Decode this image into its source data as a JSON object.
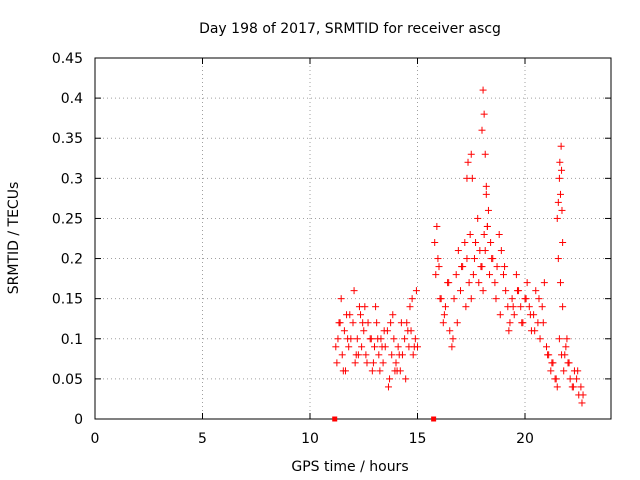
{
  "chart_data": {
    "type": "scatter",
    "title": "Day 198 of 2017, SRMTID for receiver ascg",
    "xlabel": "GPS time / hours",
    "ylabel": "SRMTID / TECUs",
    "xlim": [
      0,
      24
    ],
    "ylim": [
      0,
      0.45
    ],
    "xticks": [
      0,
      5,
      10,
      15,
      20
    ],
    "yticks": [
      0,
      0.05,
      0.1,
      0.15,
      0.2,
      0.25,
      0.3,
      0.35,
      0.4,
      0.45
    ],
    "ytick_labels": [
      "0",
      "0.05",
      "0.1",
      "0.15",
      "0.2",
      "0.25",
      "0.3",
      "0.35",
      "0.4",
      "0.45"
    ],
    "grid": true,
    "marker_color": "#ff0000",
    "zero_markers": [
      [
        11.15,
        0
      ],
      [
        15.75,
        0
      ]
    ],
    "series": [
      {
        "name": "SRMTID",
        "x": [
          11.2,
          11.3,
          11.4,
          11.5,
          11.6,
          11.7,
          11.8,
          11.9,
          12.0,
          12.1,
          12.2,
          12.3,
          12.4,
          12.5,
          12.6,
          12.7,
          12.8,
          12.9,
          13.0,
          13.1,
          13.2,
          13.3,
          13.4,
          13.5,
          13.6,
          13.7,
          13.8,
          13.9,
          14.0,
          14.1,
          14.2,
          14.3,
          14.4,
          14.5,
          14.6,
          14.7,
          14.8,
          14.9,
          15.0,
          11.25,
          11.45,
          11.65,
          11.85,
          12.05,
          12.25,
          12.45,
          12.65,
          12.85,
          13.05,
          13.25,
          13.45,
          13.65,
          13.85,
          14.05,
          14.25,
          14.45,
          14.65,
          14.85,
          11.35,
          11.75,
          12.15,
          12.55,
          12.95,
          13.35,
          13.75,
          14.15,
          14.55,
          14.95,
          11.55,
          12.35,
          13.15,
          13.95,
          14.75,
          15.8,
          15.9,
          16.0,
          16.1,
          16.2,
          16.3,
          16.4,
          16.5,
          16.6,
          16.7,
          16.8,
          16.9,
          17.0,
          17.1,
          17.2,
          17.3,
          17.4,
          17.5,
          17.6,
          17.7,
          17.8,
          17.9,
          18.0,
          18.1,
          18.2,
          18.3,
          18.4,
          18.5,
          18.6,
          18.7,
          18.8,
          18.9,
          19.0,
          19.1,
          19.2,
          19.3,
          19.4,
          19.5,
          19.6,
          19.7,
          19.8,
          19.9,
          20.0,
          20.1,
          20.2,
          20.3,
          20.4,
          20.5,
          20.6,
          20.7,
          20.8,
          20.9,
          21.0,
          21.1,
          21.2,
          21.3,
          21.4,
          21.5,
          21.6,
          21.7,
          21.8,
          21.9,
          22.0,
          22.1,
          22.2,
          22.3,
          22.4,
          22.5,
          22.6,
          22.7,
          15.85,
          15.95,
          16.05,
          16.25,
          16.45,
          16.65,
          16.85,
          17.05,
          17.25,
          17.45,
          17.65,
          17.85,
          17.95,
          18.05,
          18.15,
          18.25,
          18.35,
          18.45,
          18.65,
          18.85,
          19.05,
          19.25,
          19.45,
          19.65,
          19.85,
          20.05,
          20.25,
          20.45,
          20.65,
          20.85,
          21.05,
          21.25,
          21.45,
          21.55,
          21.65,
          21.75,
          21.85,
          21.95,
          22.05,
          22.25,
          22.45,
          22.65,
          17.3,
          17.35,
          17.5,
          17.55,
          18.0,
          18.05,
          18.1,
          18.15,
          18.2,
          18.25,
          21.5,
          21.55,
          21.6,
          21.62,
          21.65,
          21.68,
          21.7,
          21.72,
          21.75
        ],
        "y": [
          0.09,
          0.1,
          0.12,
          0.08,
          0.11,
          0.13,
          0.09,
          0.1,
          0.12,
          0.07,
          0.1,
          0.14,
          0.09,
          0.11,
          0.08,
          0.12,
          0.1,
          0.06,
          0.09,
          0.12,
          0.08,
          0.1,
          0.07,
          0.09,
          0.11,
          0.05,
          0.08,
          0.1,
          0.07,
          0.09,
          0.06,
          0.08,
          0.1,
          0.12,
          0.09,
          0.11,
          0.08,
          0.1,
          0.09,
          0.07,
          0.15,
          0.06,
          0.13,
          0.16,
          0.08,
          0.12,
          0.07,
          0.1,
          0.14,
          0.06,
          0.11,
          0.04,
          0.13,
          0.06,
          0.12,
          0.05,
          0.14,
          0.09,
          0.12,
          0.1,
          0.08,
          0.14,
          0.07,
          0.09,
          0.12,
          0.08,
          0.11,
          0.16,
          0.06,
          0.13,
          0.1,
          0.06,
          0.15,
          0.22,
          0.24,
          0.19,
          0.15,
          0.12,
          0.14,
          0.17,
          0.11,
          0.09,
          0.15,
          0.18,
          0.21,
          0.16,
          0.19,
          0.22,
          0.2,
          0.17,
          0.15,
          0.18,
          0.22,
          0.25,
          0.21,
          0.19,
          0.23,
          0.28,
          0.26,
          0.22,
          0.2,
          0.17,
          0.19,
          0.23,
          0.21,
          0.18,
          0.16,
          0.14,
          0.12,
          0.15,
          0.13,
          0.18,
          0.16,
          0.14,
          0.12,
          0.15,
          0.17,
          0.14,
          0.11,
          0.13,
          0.16,
          0.12,
          0.1,
          0.14,
          0.17,
          0.09,
          0.08,
          0.06,
          0.07,
          0.05,
          0.04,
          0.1,
          0.08,
          0.06,
          0.09,
          0.07,
          0.05,
          0.04,
          0.06,
          0.05,
          0.03,
          0.04,
          0.03,
          0.18,
          0.2,
          0.15,
          0.13,
          0.17,
          0.1,
          0.12,
          0.19,
          0.14,
          0.23,
          0.2,
          0.17,
          0.19,
          0.16,
          0.21,
          0.24,
          0.18,
          0.2,
          0.15,
          0.13,
          0.19,
          0.11,
          0.14,
          0.16,
          0.12,
          0.15,
          0.13,
          0.11,
          0.15,
          0.12,
          0.08,
          0.07,
          0.05,
          0.2,
          0.17,
          0.14,
          0.08,
          0.1,
          0.07,
          0.04,
          0.06,
          0.02,
          0.3,
          0.32,
          0.33,
          0.3,
          0.36,
          0.41,
          0.38,
          0.33,
          0.29,
          0.24,
          0.25,
          0.27,
          0.3,
          0.32,
          0.28,
          0.34,
          0.31,
          0.26,
          0.22
        ]
      }
    ]
  }
}
